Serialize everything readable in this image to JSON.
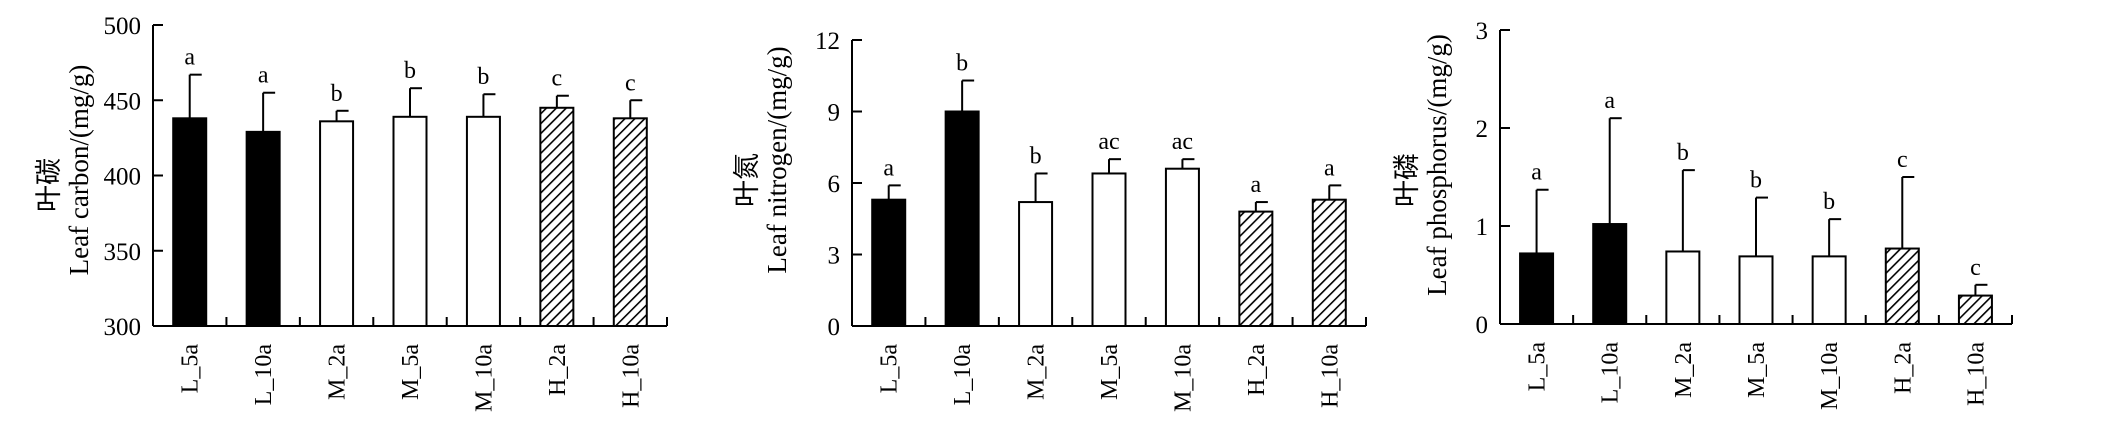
{
  "chart_data": [
    {
      "type": "bar",
      "ylabel_cn": "叶碳",
      "ylabel": "Leaf carbon/(mg/g)",
      "categories": [
        "L_5a",
        "L_10a",
        "M_2a",
        "M_5a",
        "M_10a",
        "H_2a",
        "H_10a"
      ],
      "values": [
        438,
        429,
        436,
        439,
        439,
        445,
        438
      ],
      "errors": [
        29,
        26,
        7,
        19,
        15,
        8,
        12
      ],
      "significance": [
        "a",
        "a",
        "b",
        "b",
        "b",
        "c",
        "c"
      ],
      "fills": [
        "solid",
        "solid",
        "open",
        "open",
        "open",
        "hatched",
        "hatched"
      ],
      "ylim": [
        300,
        500
      ],
      "yticks": [
        300,
        350,
        400,
        450,
        500
      ],
      "ytick_labels": [
        "300",
        "350",
        "400",
        "450",
        "500"
      ],
      "grid": false
    },
    {
      "type": "bar",
      "ylabel_cn": "叶氮",
      "ylabel": "Leaf nitrogen/(mg/g)",
      "categories": [
        "L_5a",
        "L_10a",
        "M_2a",
        "M_5a",
        "M_10a",
        "H_2a",
        "H_10a"
      ],
      "values": [
        5.3,
        9.0,
        5.2,
        6.4,
        6.6,
        4.8,
        5.3
      ],
      "errors": [
        0.6,
        1.3,
        1.2,
        0.6,
        0.4,
        0.4,
        0.6
      ],
      "significance": [
        "a",
        "b",
        "b",
        "ac",
        "ac",
        "a",
        "a"
      ],
      "fills": [
        "solid",
        "solid",
        "open",
        "open",
        "open",
        "hatched",
        "hatched"
      ],
      "ylim": [
        0,
        12
      ],
      "yticks": [
        0,
        3,
        6,
        9,
        12
      ],
      "ytick_labels": [
        "0",
        "3",
        "6",
        "9",
        "12"
      ],
      "grid": false
    },
    {
      "type": "bar",
      "ylabel_cn": "叶磷",
      "ylabel": "Leaf phosphorus/(mg/g)",
      "categories": [
        "L_5a",
        "L_10a",
        "M_2a",
        "M_5a",
        "M_10a",
        "H_2a",
        "H_10a"
      ],
      "values": [
        0.72,
        1.02,
        0.74,
        0.69,
        0.69,
        0.77,
        0.29
      ],
      "errors": [
        0.65,
        1.08,
        0.83,
        0.6,
        0.38,
        0.73,
        0.11
      ],
      "significance": [
        "a",
        "a",
        "b",
        "b",
        "b",
        "c",
        "c"
      ],
      "fills": [
        "solid",
        "solid",
        "open",
        "open",
        "open",
        "hatched",
        "hatched"
      ],
      "ylim": [
        0,
        3
      ],
      "yticks": [
        0,
        1,
        2,
        3
      ],
      "ytick_labels": [
        "0",
        "1",
        "2",
        "3"
      ],
      "grid": false
    }
  ]
}
